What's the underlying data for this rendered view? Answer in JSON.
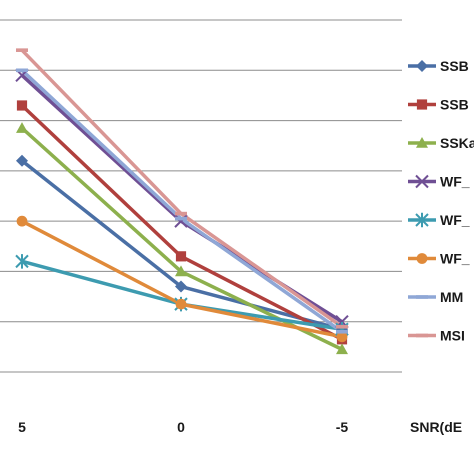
{
  "chart_data": {
    "type": "line",
    "x": [
      5,
      0,
      -5
    ],
    "x_tick_labels": [
      "5",
      "0",
      "-5"
    ],
    "xlabel": "SNR(dE",
    "ylim": [
      0,
      7
    ],
    "grid": true,
    "legend_position": "right",
    "series": [
      {
        "name": "SSB",
        "color": "#4a6fa5",
        "marker": "diamond",
        "values": [
          4.2,
          1.7,
          0.85
        ]
      },
      {
        "name": "SSB",
        "color": "#b0403d",
        "marker": "square",
        "values": [
          5.3,
          2.3,
          0.65
        ]
      },
      {
        "name": "SSKa",
        "color": "#8db04d",
        "marker": "triangle",
        "values": [
          4.85,
          2.0,
          0.45
        ]
      },
      {
        "name": "WF_",
        "color": "#6f4f94",
        "marker": "x",
        "values": [
          5.9,
          3.0,
          1.0
        ]
      },
      {
        "name": "WF_",
        "color": "#3d9bb0",
        "marker": "star",
        "values": [
          2.2,
          1.35,
          0.85
        ]
      },
      {
        "name": "WF_",
        "color": "#e08a3a",
        "marker": "circle",
        "values": [
          3.0,
          1.35,
          0.7
        ]
      },
      {
        "name": "MM",
        "color": "#8fa7d6",
        "marker": "dash",
        "values": [
          6.0,
          3.05,
          0.8
        ]
      },
      {
        "name": "MSI",
        "color": "#d99694",
        "marker": "dash",
        "values": [
          6.4,
          3.15,
          0.9
        ]
      }
    ]
  }
}
